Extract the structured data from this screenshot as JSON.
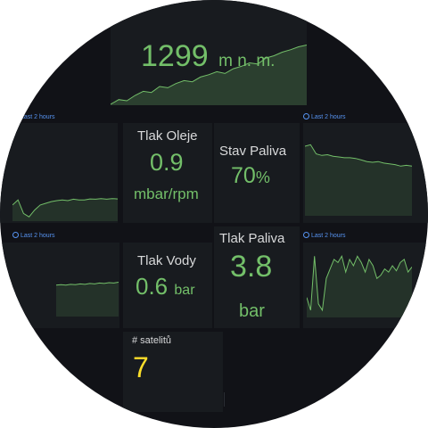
{
  "altitude": {
    "value": "1299",
    "unit": "m n. m."
  },
  "time_range_label": "Last 2 hours",
  "oil_pressure": {
    "title": "Tlak Oleje",
    "value": "0.9",
    "unit": "mbar/rpm"
  },
  "fuel_level": {
    "title": "Stav Paliva",
    "value": "70",
    "unit": "%"
  },
  "water_pressure": {
    "title": "Tlak Vody",
    "value": "0.6",
    "unit": "bar"
  },
  "fuel_pressure": {
    "title": "Tlak Paliva",
    "value": "3.8",
    "unit": "bar"
  },
  "satellites": {
    "title": "# satelitů",
    "value": "7"
  },
  "colors": {
    "background": "#111217",
    "panel": "#181b1f",
    "green": "#73bf69",
    "yellow": "#fade2a",
    "blue_link": "#5794f2",
    "title_text": "#d8d9da"
  },
  "icons": {
    "time_range": "clock-icon"
  },
  "sparklines": {
    "altitude": [
      0.0,
      0.08,
      0.06,
      0.15,
      0.22,
      0.2,
      0.3,
      0.28,
      0.35,
      0.4,
      0.38,
      0.46,
      0.5,
      0.55,
      0.52,
      0.6,
      0.64,
      0.7,
      0.68,
      0.78,
      0.82,
      0.88,
      0.92,
      0.97,
      1.0
    ],
    "oil": [
      0.45,
      0.6,
      0.2,
      0.1,
      0.3,
      0.45,
      0.5,
      0.55,
      0.58,
      0.6,
      0.58,
      0.62,
      0.6,
      0.6,
      0.63,
      0.62,
      0.64,
      0.62,
      0.64,
      0.63
    ],
    "fuel_level": [
      0.9,
      0.92,
      0.8,
      0.78,
      0.79,
      0.77,
      0.76,
      0.75,
      0.75,
      0.74,
      0.72,
      0.7,
      0.69,
      0.7,
      0.68,
      0.67,
      0.66,
      0.64,
      0.65,
      0.64
    ],
    "water": [
      0.72,
      0.73,
      0.72,
      0.74,
      0.73,
      0.75,
      0.74,
      0.76,
      0.75,
      0.77,
      0.76,
      0.78,
      0.77,
      0.79
    ],
    "fuel_pressure": [
      0.3,
      0.1,
      0.95,
      0.2,
      0.1,
      0.6,
      0.75,
      0.9,
      0.85,
      0.95,
      0.7,
      0.9,
      0.8,
      0.95,
      0.85,
      0.7,
      0.9,
      0.8,
      0.6,
      0.65,
      0.75,
      0.7,
      0.8,
      0.72,
      0.85,
      0.9,
      0.7,
      0.78
    ]
  }
}
